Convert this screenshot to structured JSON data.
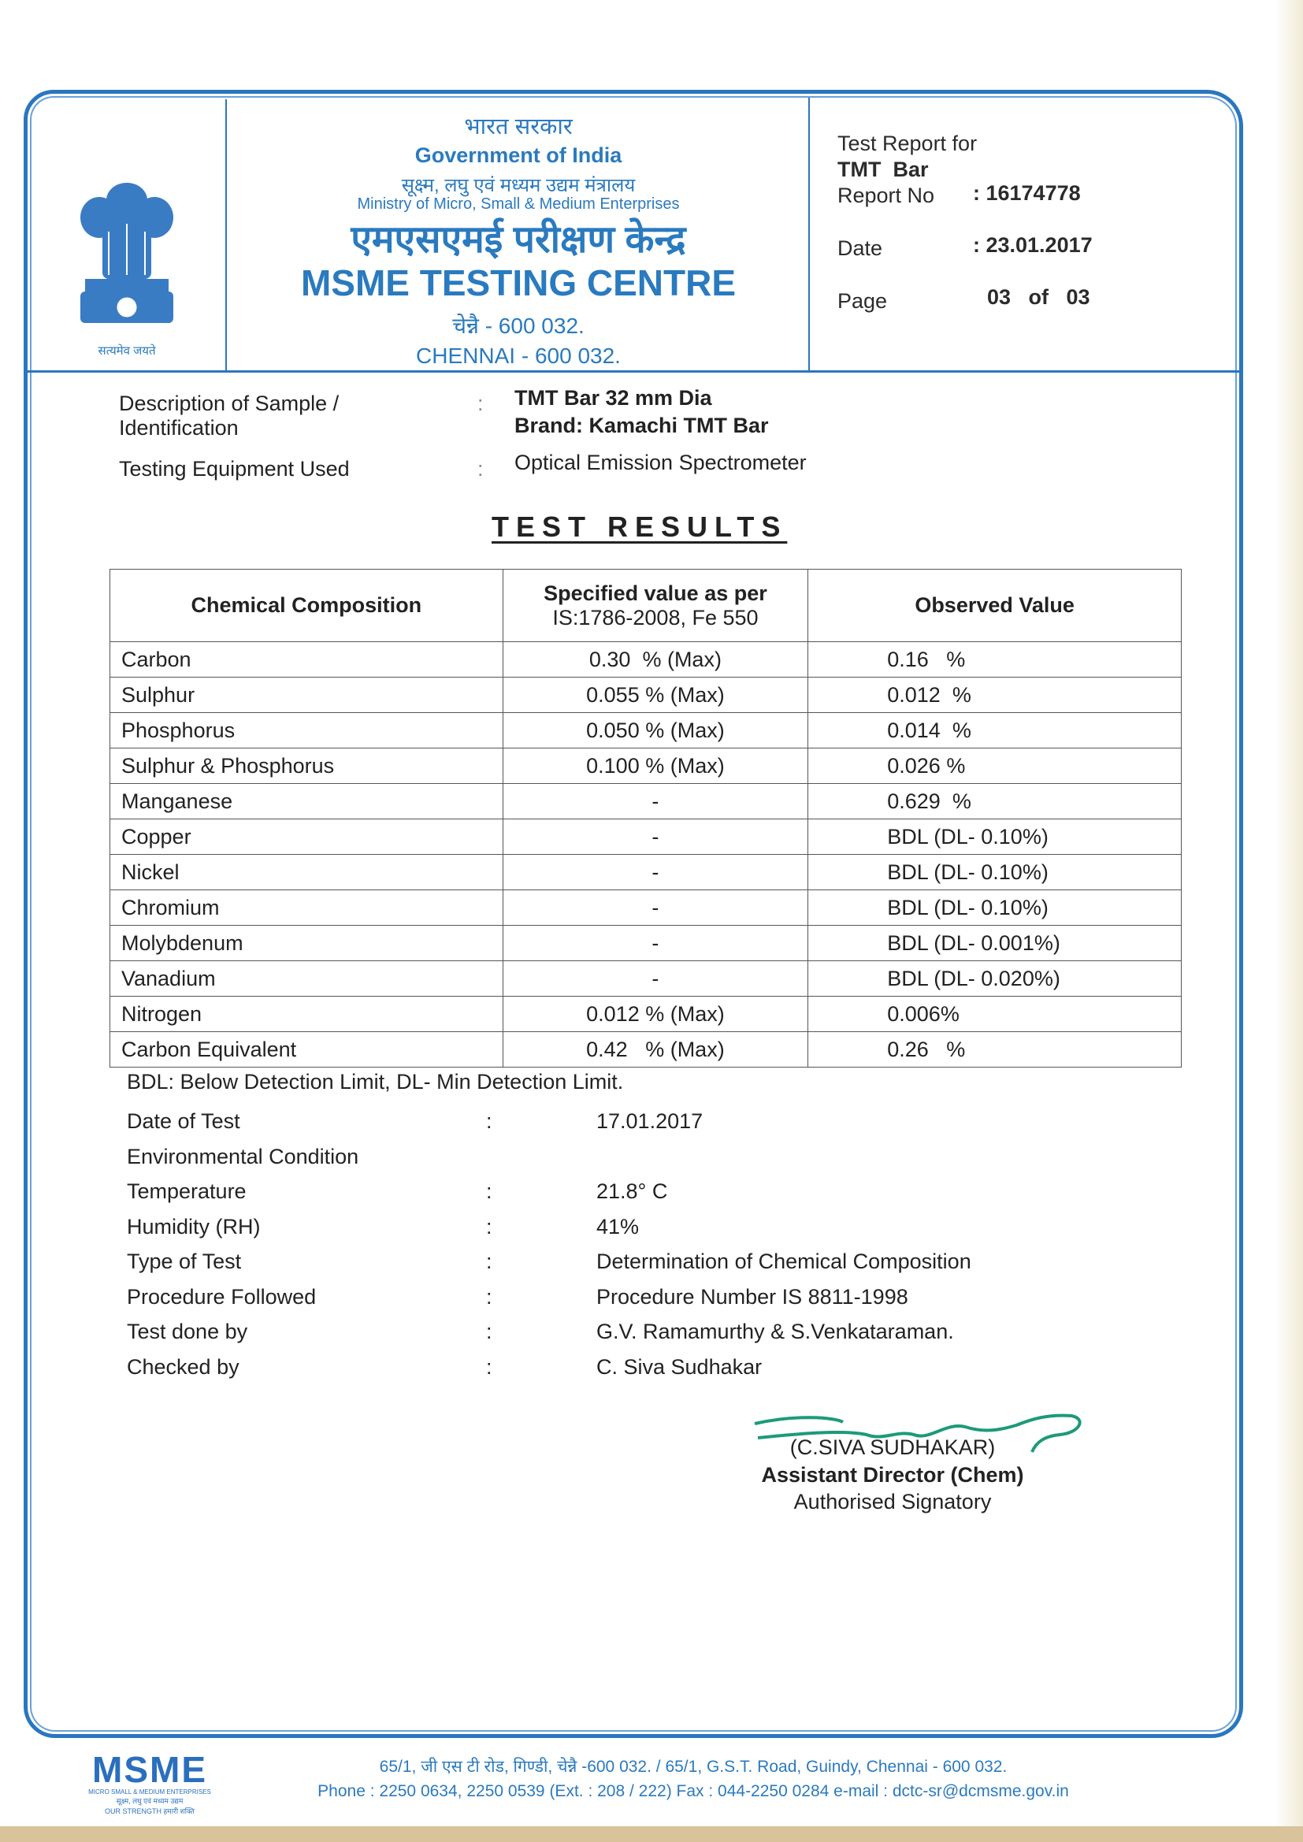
{
  "header": {
    "hindi_govt": "भारत सरकार",
    "govt": "Government of India",
    "hindi_ministry": "सूक्ष्म, लघु एवं मध्यम उद्यम मंत्रालय",
    "ministry": "Ministry of Micro, Small & Medium Enterprises",
    "hindi_centre": "एमएसएमई परीक्षण केन्द्र",
    "centre": "MSME TESTING CENTRE",
    "hindi_city": "चेन्नै - 600 032.",
    "city": "CHENNAI - 600 032.",
    "emblem_motto": "सत्यमेव जयते"
  },
  "report": {
    "test_report_for": "Test Report for",
    "product": "TMT  Bar",
    "report_no_label": "Report No",
    "report_no": ": 16174778",
    "date_label": "Date",
    "date": ": 23.01.2017",
    "page_label": "Page",
    "page": "03   of   03"
  },
  "sample": {
    "desc_label_1": "Description of Sample /",
    "desc_label_2": "Identification",
    "desc_value_1": "TMT Bar 32 mm Dia",
    "desc_value_2": "Brand: Kamachi TMT Bar",
    "equip_label": "Testing Equipment Used",
    "equip_value": "Optical Emission Spectrometer",
    "colon": ":"
  },
  "title": "TEST RESULTS",
  "table": {
    "headers": [
      "Chemical Composition",
      "Specified value as per",
      "IS:1786-2008, Fe 550",
      "Observed Value"
    ],
    "rows": [
      [
        "Carbon",
        "0.30  % (Max)",
        "0.16   %"
      ],
      [
        "Sulphur",
        "0.055 % (Max)",
        "0.012  %"
      ],
      [
        "Phosphorus",
        "0.050 % (Max)",
        "0.014  %"
      ],
      [
        "Sulphur & Phosphorus",
        "0.100 % (Max)",
        "0.026 %"
      ],
      [
        "Manganese",
        "-",
        "0.629  %"
      ],
      [
        "Copper",
        "-",
        "BDL (DL- 0.10%)"
      ],
      [
        "Nickel",
        "-",
        "BDL (DL- 0.10%)"
      ],
      [
        "Chromium",
        "-",
        "BDL (DL- 0.10%)"
      ],
      [
        "Molybdenum",
        "-",
        "BDL (DL- 0.001%)"
      ],
      [
        "Vanadium",
        "-",
        "BDL (DL- 0.020%)"
      ],
      [
        "Nitrogen",
        "0.012 % (Max)",
        "0.006%"
      ],
      [
        "Carbon Equivalent",
        "0.42   % (Max)",
        "0.26   %"
      ]
    ]
  },
  "note": "BDL: Below Detection Limit, DL- Min Detection Limit.",
  "info": [
    {
      "label": "Date of Test",
      "value": "17.01.2017"
    },
    {
      "label": "Environmental Condition",
      "value": ""
    },
    {
      "label": "Temperature",
      "value": "21.8° C"
    },
    {
      "label": "Humidity (RH)",
      "value": "41%"
    },
    {
      "label": "Type of Test",
      "value": "Determination of Chemical Composition"
    },
    {
      "label": "Procedure Followed",
      "value": "Procedure Number IS 8811-1998"
    },
    {
      "label": "Test done by",
      "value": "G.V. Ramamurthy & S.Venkataraman."
    },
    {
      "label": "Checked by",
      "value": "C. Siva Sudhakar"
    }
  ],
  "signatory": {
    "name": "(C.SIVA SUDHAKAR)",
    "designation": "Assistant Director (Chem)",
    "role": "Authorised Signatory"
  },
  "footer": {
    "logo": "MSME",
    "logo_sub_1": "MICRO SMALL & MEDIUM ENTERPRISES",
    "logo_sub_2": "सूक्ष्म, लघु एवं मध्यम उद्यम",
    "logo_sub_3": "OUR STRENGTH हमारी शक्ति",
    "address": "65/1, जी एस टी रोड, गिण्डी, चेन्नै -600 032. / 65/1, G.S.T. Road, Guindy, Chennai - 600 032.",
    "contact": "Phone : 2250 0634, 2250 0539 (Ext. : 208 / 222) Fax : 044-2250 0284  e-mail : dctc-sr@dcmsme.gov.in"
  },
  "colors": {
    "brand_blue": "#2a7abf",
    "text": "#222222"
  }
}
